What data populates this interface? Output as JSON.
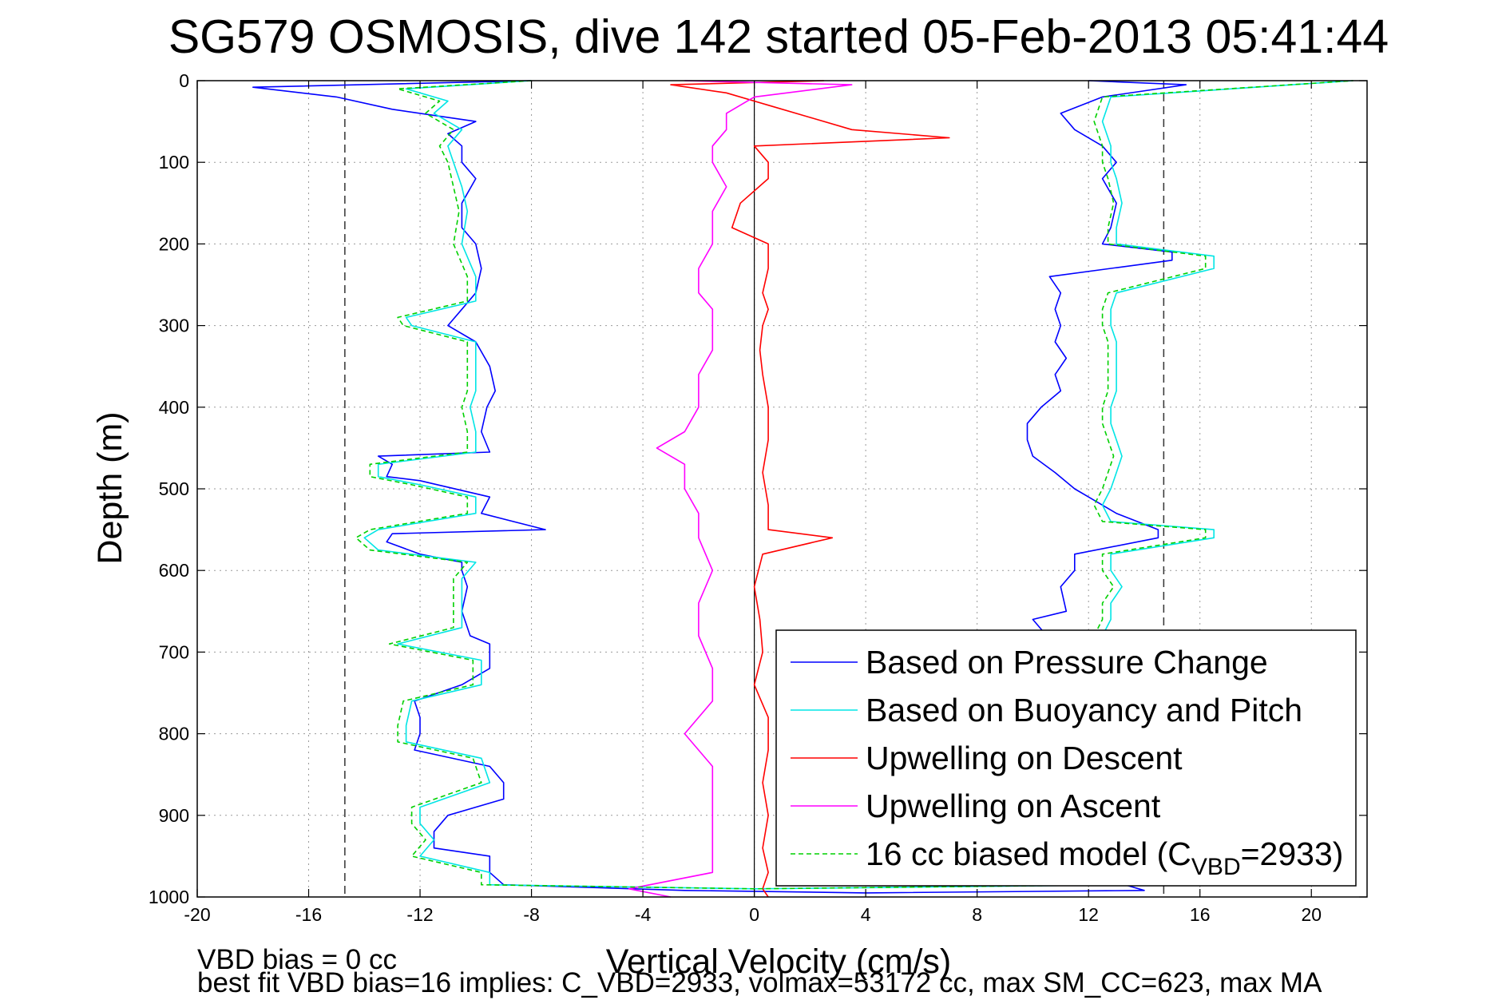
{
  "chart_data": {
    "type": "line",
    "title": "SG579 OSMOSIS, dive 142 started 05-Feb-2013 05:41:44",
    "xlabel": "Vertical Velocity (cm/s)",
    "ylabel": "Depth (m)",
    "xlim": [
      -20,
      22
    ],
    "ylim": [
      1000,
      0
    ],
    "y_reversed": true,
    "x_ticks": [
      -20,
      -16,
      -12,
      -8,
      -4,
      0,
      4,
      8,
      12,
      16,
      20
    ],
    "y_ticks": [
      0,
      100,
      200,
      300,
      400,
      500,
      600,
      700,
      800,
      900,
      1000
    ],
    "grid": "on",
    "legend_position": "bottom-right",
    "reference_lines": {
      "dashed_x": [
        -14.7,
        14.7
      ],
      "solid_x": [
        0
      ]
    },
    "series": [
      {
        "name": "Based on Pressure Change",
        "color": "#0000ff",
        "depth": [
          0,
          8,
          20,
          35,
          50,
          65,
          80,
          100,
          120,
          150,
          180,
          200,
          230,
          260,
          280,
          300,
          320,
          350,
          380,
          400,
          430,
          455,
          460,
          470,
          485,
          490,
          510,
          530,
          550,
          555,
          565,
          580,
          590,
          600,
          620,
          650,
          680,
          690,
          700,
          720,
          740,
          760,
          780,
          800,
          820,
          840,
          860,
          880,
          900,
          920,
          940,
          950,
          970,
          985,
          992,
          995,
          992,
          980,
          960,
          940,
          920,
          900,
          880,
          860,
          840,
          820,
          800,
          780,
          760,
          740,
          720,
          700,
          680,
          660,
          650,
          620,
          600,
          580,
          560,
          550,
          530,
          510,
          500,
          480,
          460,
          440,
          420,
          400,
          380,
          360,
          340,
          320,
          300,
          280,
          260,
          240,
          220,
          210,
          200,
          180,
          150,
          120,
          100,
          80,
          60,
          40,
          20,
          5,
          0
        ],
        "velocity": [
          -8.0,
          -18.0,
          -15.0,
          -13.0,
          -10.0,
          -11.0,
          -10.5,
          -10.5,
          -10.0,
          -10.5,
          -10.5,
          -10.0,
          -9.8,
          -10.0,
          -10.5,
          -11.0,
          -10.0,
          -9.5,
          -9.3,
          -9.6,
          -9.8,
          -9.5,
          -13.5,
          -13.0,
          -13.2,
          -12.0,
          -9.5,
          -9.8,
          -7.5,
          -13.0,
          -13.2,
          -12.0,
          -10.5,
          -10.5,
          -10.3,
          -10.5,
          -10.2,
          -9.5,
          -9.5,
          -9.5,
          -10.5,
          -12.2,
          -12.0,
          -12.0,
          -12.2,
          -9.5,
          -9.0,
          -9.0,
          -11.0,
          -11.5,
          -11.5,
          -9.5,
          -9.5,
          -9.0,
          -2.5,
          4.0,
          14.0,
          12.8,
          12.2,
          12.0,
          12.5,
          12.8,
          12.5,
          12.5,
          12.3,
          12.3,
          11.8,
          11.8,
          11.5,
          11.5,
          11.8,
          11.2,
          10.5,
          10.0,
          11.2,
          11.0,
          11.5,
          11.5,
          14.5,
          14.5,
          13.0,
          12.0,
          11.5,
          10.8,
          10.0,
          9.8,
          9.8,
          10.3,
          11.0,
          10.8,
          11.2,
          10.8,
          11.0,
          10.8,
          11.0,
          10.6,
          15.0,
          15.0,
          12.5,
          12.8,
          13.0,
          12.5,
          13.0,
          12.5,
          11.5,
          11.0,
          12.5,
          15.5,
          12.0
        ]
      },
      {
        "name": "Based on Buoyancy and Pitch",
        "color": "#00e5e5",
        "depth": [
          0,
          10,
          25,
          40,
          60,
          80,
          100,
          130,
          160,
          200,
          240,
          270,
          290,
          300,
          320,
          350,
          380,
          400,
          430,
          455,
          470,
          485,
          495,
          510,
          530,
          550,
          560,
          575,
          590,
          610,
          640,
          670,
          690,
          710,
          740,
          760,
          790,
          810,
          830,
          860,
          890,
          910,
          930,
          950,
          970,
          985,
          990,
          985,
          970,
          950,
          930,
          910,
          890,
          870,
          850,
          820,
          800,
          780,
          750,
          720,
          700,
          680,
          660,
          640,
          620,
          600,
          580,
          560,
          550,
          540,
          520,
          500,
          480,
          460,
          440,
          420,
          400,
          380,
          360,
          340,
          320,
          300,
          280,
          260,
          230,
          215,
          200,
          180,
          150,
          120,
          100,
          80,
          50,
          20,
          0
        ],
        "velocity": [
          -8.0,
          -12.5,
          -11.0,
          -11.5,
          -10.5,
          -11.0,
          -10.8,
          -10.5,
          -10.3,
          -10.5,
          -10.0,
          -10.0,
          -12.5,
          -12.3,
          -10.0,
          -10.0,
          -10.0,
          -10.2,
          -10.0,
          -10.0,
          -13.5,
          -13.5,
          -12.0,
          -10.0,
          -10.0,
          -13.5,
          -14.0,
          -13.5,
          -10.0,
          -10.5,
          -10.5,
          -10.5,
          -12.8,
          -9.8,
          -9.8,
          -12.3,
          -12.5,
          -12.5,
          -9.8,
          -9.5,
          -12.0,
          -12.0,
          -11.5,
          -12.0,
          -9.5,
          -9.5,
          0.0,
          13.5,
          12.8,
          13.0,
          13.0,
          13.0,
          12.8,
          12.8,
          12.5,
          12.5,
          12.5,
          12.8,
          12.8,
          12.5,
          12.5,
          12.5,
          12.8,
          12.8,
          13.2,
          12.8,
          12.8,
          16.5,
          16.5,
          12.8,
          12.5,
          12.8,
          13.0,
          13.2,
          13.0,
          12.8,
          12.8,
          13.0,
          13.0,
          13.0,
          13.0,
          12.8,
          12.8,
          13.0,
          16.5,
          16.5,
          13.0,
          13.0,
          13.2,
          13.0,
          12.8,
          12.8,
          12.5,
          12.8,
          21.5
        ]
      },
      {
        "name": "Upwelling on Descent",
        "color": "#ff0000",
        "depth": [
          0,
          5,
          15,
          30,
          45,
          60,
          70,
          80,
          100,
          120,
          150,
          180,
          200,
          230,
          260,
          280,
          300,
          330,
          360,
          400,
          440,
          480,
          520,
          550,
          560,
          580,
          620,
          660,
          700,
          740,
          780,
          820,
          860,
          900,
          940,
          970,
          990,
          1000
        ],
        "velocity": [
          2.5,
          -3.0,
          -1.0,
          0.5,
          2.0,
          3.5,
          7.0,
          0.0,
          0.5,
          0.5,
          -0.5,
          -0.8,
          0.5,
          0.5,
          0.3,
          0.5,
          0.3,
          0.2,
          0.3,
          0.5,
          0.5,
          0.3,
          0.5,
          0.5,
          2.8,
          0.3,
          0.0,
          0.2,
          0.3,
          0.0,
          0.5,
          0.5,
          0.3,
          0.5,
          0.3,
          0.5,
          0.3,
          0.5
        ]
      },
      {
        "name": "Upwelling on Ascent",
        "color": "#ff00ff",
        "depth": [
          0,
          5,
          20,
          40,
          60,
          80,
          100,
          130,
          160,
          200,
          230,
          260,
          280,
          300,
          330,
          360,
          400,
          430,
          450,
          470,
          500,
          530,
          560,
          600,
          640,
          680,
          720,
          760,
          800,
          840,
          880,
          920,
          950,
          970,
          990,
          1000
        ],
        "velocity": [
          -2.5,
          3.5,
          0.0,
          -1.0,
          -1.0,
          -1.5,
          -1.5,
          -1.0,
          -1.5,
          -1.5,
          -2.0,
          -2.0,
          -1.5,
          -1.5,
          -1.5,
          -2.0,
          -2.0,
          -2.5,
          -3.5,
          -2.5,
          -2.5,
          -2.0,
          -2.0,
          -1.5,
          -2.0,
          -2.0,
          -1.5,
          -1.5,
          -2.5,
          -1.5,
          -1.5,
          -1.5,
          -1.5,
          -1.5,
          -4.5,
          -3.0
        ]
      },
      {
        "name": "16 cc biased model (C_VBD=2933)",
        "color": "#00d000",
        "dashed": true,
        "depth": [
          0,
          10,
          25,
          40,
          60,
          80,
          100,
          130,
          160,
          200,
          240,
          270,
          290,
          300,
          320,
          350,
          380,
          400,
          430,
          455,
          470,
          485,
          495,
          510,
          530,
          550,
          560,
          575,
          590,
          610,
          640,
          670,
          690,
          710,
          740,
          760,
          790,
          810,
          830,
          860,
          890,
          910,
          930,
          950,
          970,
          985,
          990,
          985,
          970,
          950,
          930,
          910,
          890,
          870,
          850,
          820,
          800,
          780,
          750,
          720,
          700,
          680,
          660,
          640,
          620,
          600,
          580,
          560,
          550,
          540,
          520,
          500,
          480,
          460,
          440,
          420,
          400,
          380,
          360,
          340,
          320,
          300,
          280,
          260,
          230,
          215,
          200,
          180,
          150,
          120,
          100,
          80,
          50,
          20,
          0
        ],
        "velocity": [
          -8.0,
          -12.8,
          -11.3,
          -11.8,
          -10.8,
          -11.3,
          -11.0,
          -10.8,
          -10.6,
          -10.8,
          -10.3,
          -10.3,
          -12.8,
          -12.6,
          -10.3,
          -10.3,
          -10.3,
          -10.5,
          -10.3,
          -10.3,
          -13.8,
          -13.8,
          -12.3,
          -10.3,
          -10.3,
          -13.8,
          -14.3,
          -13.8,
          -10.3,
          -10.8,
          -10.8,
          -10.8,
          -13.1,
          -10.1,
          -10.1,
          -12.6,
          -12.8,
          -12.8,
          -10.1,
          -9.8,
          -12.3,
          -12.3,
          -11.8,
          -12.3,
          -9.8,
          -9.8,
          0.0,
          13.2,
          12.5,
          12.7,
          12.7,
          12.7,
          12.5,
          12.5,
          12.2,
          12.2,
          12.2,
          12.5,
          12.5,
          12.2,
          12.2,
          12.2,
          12.5,
          12.5,
          12.9,
          12.5,
          12.5,
          16.2,
          16.2,
          12.5,
          12.2,
          12.5,
          12.7,
          12.9,
          12.7,
          12.5,
          12.5,
          12.7,
          12.7,
          12.7,
          12.7,
          12.5,
          12.5,
          12.7,
          16.2,
          16.2,
          12.7,
          12.7,
          12.9,
          12.7,
          12.5,
          12.5,
          12.2,
          12.5,
          21.5
        ]
      }
    ],
    "legend": {
      "entries": [
        {
          "label": "Based on Pressure Change",
          "color": "#0000ff",
          "dashed": false
        },
        {
          "label": "Based on Buoyancy and Pitch",
          "color": "#00e5e5",
          "dashed": false
        },
        {
          "label": "Upwelling on Descent",
          "color": "#ff0000",
          "dashed": false
        },
        {
          "label": "Upwelling on Ascent",
          "color": "#ff00ff",
          "dashed": false
        },
        {
          "label": "16 cc biased model (C",
          "sub": "VBD",
          "suffix": "=2933)",
          "color": "#00d000",
          "dashed": true
        }
      ]
    },
    "annotations": {
      "vbd_bias": "VBD bias = 0 cc",
      "best_fit": "best fit VBD bias=16 implies: C_VBD=2933, volmax=53172 cc, max SM_CC=623, max MA"
    }
  }
}
